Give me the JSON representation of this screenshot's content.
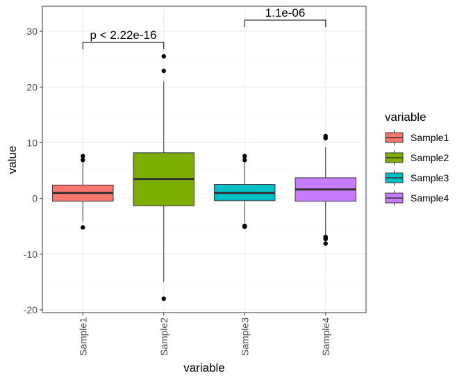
{
  "chart_data": {
    "type": "box",
    "xlabel": "variable",
    "ylabel": "value",
    "ylim": [
      -20.5,
      34.5
    ],
    "y_ticks": [
      -20,
      -10,
      0,
      10,
      20,
      30
    ],
    "grid": true,
    "categories": [
      "Sample1",
      "Sample2",
      "Sample3",
      "Sample4"
    ],
    "colors": [
      "#F8766D",
      "#7CAE00",
      "#00BFC4",
      "#C77CFF"
    ],
    "boxes": [
      {
        "name": "Sample1",
        "min": -4.2,
        "q1": -0.5,
        "median": 1.0,
        "q3": 2.4,
        "max": 6.6,
        "outliers": [
          7.6,
          6.9,
          -5.2
        ]
      },
      {
        "name": "Sample2",
        "min": -15.0,
        "q1": -1.3,
        "median": 3.5,
        "q3": 8.2,
        "max": 21.0,
        "outliers": [
          25.5,
          22.9,
          -18.0
        ]
      },
      {
        "name": "Sample3",
        "min": -4.3,
        "q1": -0.4,
        "median": 1.0,
        "q3": 2.5,
        "max": 6.5,
        "outliers": [
          7.6,
          6.9,
          -4.9,
          -5.1
        ]
      },
      {
        "name": "Sample4",
        "min": -6.6,
        "q1": -0.5,
        "median": 1.6,
        "q3": 3.7,
        "max": 9.2,
        "outliers": [
          11.2,
          10.8,
          -6.9,
          -7.1,
          -7.3,
          -8.1
        ]
      }
    ],
    "legend": {
      "title": "variable",
      "position": "right",
      "entries": [
        "Sample1",
        "Sample2",
        "Sample3",
        "Sample4"
      ]
    },
    "annotations": [
      {
        "label": "p < 2.22e-16",
        "from": 0,
        "to": 1,
        "y": 28.0
      },
      {
        "label": "1.1e-06",
        "from": 2,
        "to": 3,
        "y": 32.0
      }
    ]
  }
}
